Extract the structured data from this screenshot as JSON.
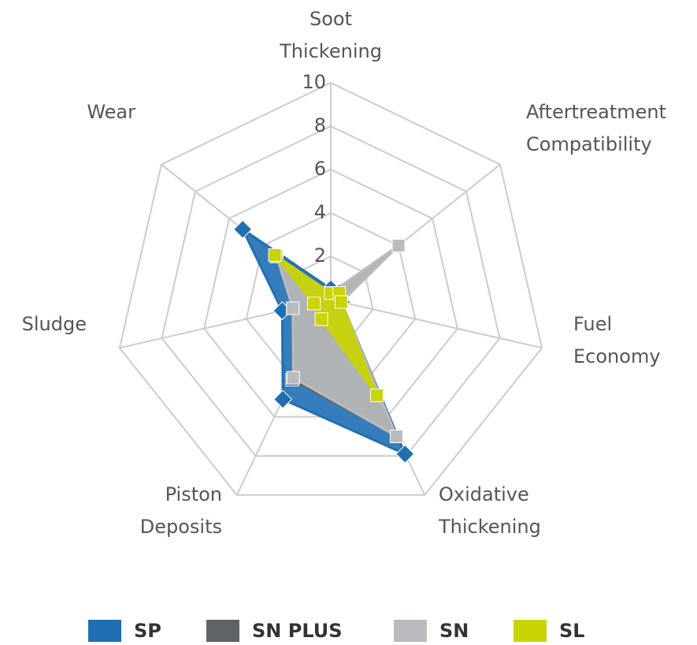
{
  "chart_data": {
    "type": "radar",
    "categories": [
      "Soot Thickening",
      "Aftertreatment Compatibility",
      "Fuel Economy",
      "Oxidative Thickening",
      "Piston Deposits",
      "Sludge",
      "Wear"
    ],
    "ylim": [
      0,
      10
    ],
    "yticks": [
      2,
      4,
      6,
      8,
      10
    ],
    "grid": true,
    "legend": "bottom",
    "series": [
      {
        "name": "SP",
        "color": "#1f6fb5",
        "values": [
          0.5,
          0.5,
          0.5,
          7.9,
          5.1,
          2.3,
          5.2
        ]
      },
      {
        "name": "SN PLUS",
        "color": "#5f6368",
        "values": [
          0.3,
          4.0,
          0.5,
          7.0,
          4.1,
          1.8,
          3.2
        ]
      },
      {
        "name": "SN",
        "color": "#b9bbbe",
        "values": [
          0.3,
          4.0,
          0.5,
          7.0,
          4.0,
          1.8,
          3.2
        ]
      },
      {
        "name": "SL",
        "color": "#c9d400",
        "values": [
          0.3,
          0.5,
          0.5,
          4.9,
          1.0,
          0.8,
          3.3
        ]
      }
    ]
  }
}
